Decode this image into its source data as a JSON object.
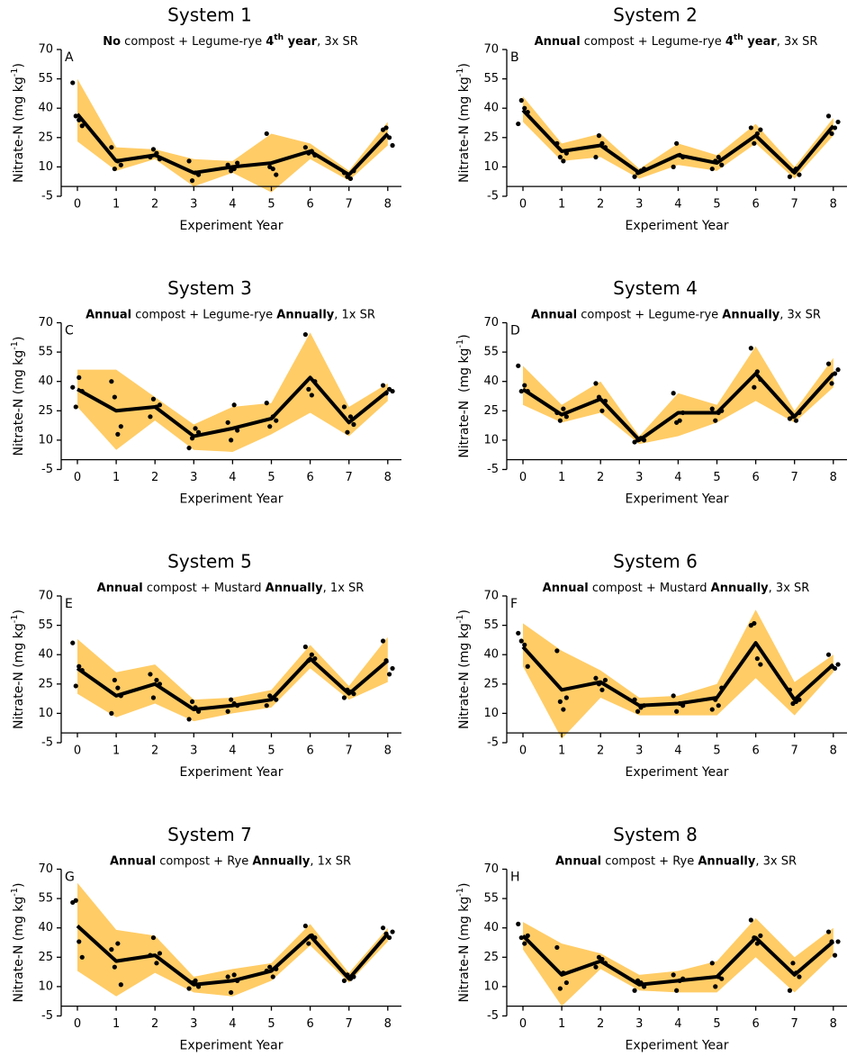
{
  "chart_data": [
    {
      "type": "line",
      "title": "System 1",
      "panel_label": "A",
      "subtitle": [
        {
          "text": "No",
          "bold": true
        },
        {
          "text": " compost + Legume-rye "
        },
        {
          "text": "4",
          "bold": true
        },
        {
          "text": "th",
          "bold": true,
          "sup": true
        },
        {
          "text": " year",
          "bold": true
        },
        {
          "text": ", 3x SR"
        }
      ],
      "xlabel": "Experiment Year",
      "ylabel": [
        {
          "text": "Nitrate-N (mg kg"
        },
        {
          "text": "-1",
          "sup": true
        },
        {
          "text": ")"
        }
      ],
      "categories": [
        "0",
        "1",
        "2",
        "3",
        "4",
        "5",
        "6",
        "7",
        "8"
      ],
      "ylim": [
        -5,
        70
      ],
      "yticks": [
        -5,
        10,
        25,
        40,
        55,
        70
      ],
      "color": "#000000",
      "band_color": "#ffcc66",
      "values": [
        37,
        13,
        16,
        7,
        10,
        12,
        18,
        6,
        27
      ],
      "band": {
        "lower": [
          23,
          8,
          14,
          0,
          7,
          -3,
          14,
          3,
          21
        ],
        "upper": [
          55,
          20,
          19,
          14,
          13,
          27,
          22,
          8,
          33
        ]
      },
      "points": [
        [
          53,
          36,
          34,
          31
        ],
        [
          20,
          9,
          13,
          11
        ],
        [
          15,
          19,
          17,
          14
        ],
        [
          13,
          3,
          7,
          6
        ],
        [
          11,
          8,
          9,
          12
        ],
        [
          27,
          10,
          9,
          6
        ],
        [
          20,
          17,
          18,
          16
        ],
        [
          7,
          5,
          4,
          8
        ],
        [
          29,
          30,
          25,
          21
        ]
      ]
    },
    {
      "type": "line",
      "title": "System 2",
      "panel_label": "B",
      "subtitle": [
        {
          "text": "Annual",
          "bold": true
        },
        {
          "text": " compost + Legume-rye "
        },
        {
          "text": "4",
          "bold": true
        },
        {
          "text": "th",
          "bold": true,
          "sup": true
        },
        {
          "text": " year",
          "bold": true
        },
        {
          "text": ", 3x SR"
        }
      ],
      "xlabel": "Experiment Year",
      "ylabel": [
        {
          "text": "Nitrate-N (mg kg"
        },
        {
          "text": "-1",
          "sup": true
        },
        {
          "text": ")"
        }
      ],
      "categories": [
        "0",
        "1",
        "2",
        "3",
        "4",
        "5",
        "6",
        "7",
        "8"
      ],
      "ylim": [
        -5,
        70
      ],
      "yticks": [
        -5,
        10,
        25,
        40,
        55,
        70
      ],
      "color": "#000000",
      "band_color": "#ffcc66",
      "values": [
        39,
        18,
        21,
        7,
        16,
        12,
        26,
        7,
        31
      ],
      "band": {
        "lower": [
          33,
          13,
          15,
          4,
          11,
          8,
          22,
          4,
          26
        ],
        "upper": [
          46,
          22,
          27,
          9,
          22,
          16,
          32,
          10,
          35
        ]
      },
      "points": [
        [
          32,
          44,
          40,
          38
        ],
        [
          22,
          15,
          13,
          17
        ],
        [
          15,
          26,
          22,
          20
        ],
        [
          5,
          7,
          8,
          9
        ],
        [
          10,
          22,
          16,
          15
        ],
        [
          9,
          13,
          15,
          11
        ],
        [
          30,
          22,
          27,
          29
        ],
        [
          5,
          8,
          9,
          6
        ],
        [
          36,
          27,
          30,
          33
        ]
      ]
    },
    {
      "type": "line",
      "title": "System 3",
      "panel_label": "C",
      "subtitle": [
        {
          "text": "Annual",
          "bold": true
        },
        {
          "text": " compost + Legume-rye "
        },
        {
          "text": "Annually",
          "bold": true
        },
        {
          "text": ", 1x SR"
        }
      ],
      "xlabel": "Experiment Year",
      "ylabel": [
        {
          "text": "Nitrate-N (mg kg"
        },
        {
          "text": "-1",
          "sup": true
        },
        {
          "text": ")"
        }
      ],
      "categories": [
        "0",
        "1",
        "2",
        "3",
        "4",
        "5",
        "6",
        "7",
        "8"
      ],
      "ylim": [
        -5,
        70
      ],
      "yticks": [
        -5,
        10,
        25,
        40,
        55,
        70
      ],
      "color": "#000000",
      "band_color": "#ffcc66",
      "values": [
        36,
        25,
        27,
        12,
        16,
        21,
        42,
        19,
        35
      ],
      "band": {
        "lower": [
          27,
          5,
          20,
          5,
          4,
          13,
          24,
          12,
          30
        ],
        "upper": [
          46,
          46,
          32,
          18,
          27,
          29,
          65,
          27,
          39
        ]
      },
      "points": [
        [
          37,
          27,
          42,
          35
        ],
        [
          40,
          32,
          13,
          17
        ],
        [
          22,
          31,
          27,
          28
        ],
        [
          6,
          11,
          16,
          14
        ],
        [
          19,
          10,
          28,
          15
        ],
        [
          29,
          17,
          22,
          20
        ],
        [
          64,
          36,
          33,
          40
        ],
        [
          27,
          14,
          22,
          18
        ],
        [
          38,
          34,
          36,
          35
        ]
      ]
    },
    {
      "type": "line",
      "title": "System 4",
      "panel_label": "D",
      "subtitle": [
        {
          "text": "Annual",
          "bold": true
        },
        {
          "text": " compost + Legume-rye "
        },
        {
          "text": "Annually",
          "bold": true
        },
        {
          "text": ", 3x SR"
        }
      ],
      "xlabel": "Experiment Year",
      "ylabel": [
        {
          "text": "Nitrate-N  (mg kg"
        },
        {
          "text": "-1",
          "sup": true
        },
        {
          "text": ")"
        }
      ],
      "categories": [
        "0",
        "1",
        "2",
        "3",
        "4",
        "5",
        "6",
        "7",
        "8"
      ],
      "ylim": [
        -5,
        70
      ],
      "yticks": [
        -5,
        10,
        25,
        40,
        55,
        70
      ],
      "color": "#000000",
      "band_color": "#ffcc66",
      "values": [
        36,
        23,
        31,
        10,
        24,
        24,
        44,
        22,
        44
      ],
      "band": {
        "lower": [
          28,
          19,
          24,
          8,
          12,
          19,
          30,
          19,
          37
        ],
        "upper": [
          48,
          28,
          40,
          12,
          34,
          28,
          58,
          25,
          52
        ]
      },
      "points": [
        [
          48,
          35,
          38,
          35
        ],
        [
          24,
          20,
          26,
          22
        ],
        [
          39,
          32,
          25,
          30
        ],
        [
          9,
          10,
          11,
          10
        ],
        [
          34,
          19,
          20,
          24
        ],
        [
          26,
          20,
          24,
          25
        ],
        [
          57,
          37,
          45,
          41
        ],
        [
          21,
          22,
          20,
          24
        ],
        [
          49,
          39,
          44,
          46
        ]
      ]
    },
    {
      "type": "line",
      "title": "System 5",
      "panel_label": "E",
      "subtitle": [
        {
          "text": "Annual",
          "bold": true
        },
        {
          "text": " compost + Mustard "
        },
        {
          "text": "Annually",
          "bold": true
        },
        {
          "text": ", 1x SR"
        }
      ],
      "xlabel": "Experiment Year",
      "ylabel": [
        {
          "text": "Nitrate-N (mg kg"
        },
        {
          "text": "-1",
          "sup": true
        },
        {
          "text": ")"
        }
      ],
      "categories": [
        "0",
        "1",
        "2",
        "3",
        "4",
        "5",
        "6",
        "7",
        "8"
      ],
      "ylim": [
        -5,
        70
      ],
      "yticks": [
        -5,
        10,
        25,
        40,
        55,
        70
      ],
      "color": "#000000",
      "band_color": "#ffcc66",
      "values": [
        33,
        19,
        25,
        12,
        14,
        17,
        38,
        20,
        37
      ],
      "band": {
        "lower": [
          20,
          8,
          15,
          6,
          10,
          13,
          33,
          17,
          26
        ],
        "upper": [
          48,
          31,
          35,
          17,
          18,
          22,
          45,
          24,
          49
        ]
      },
      "points": [
        [
          46,
          24,
          34,
          32
        ],
        [
          10,
          27,
          23,
          19
        ],
        [
          30,
          18,
          27,
          25
        ],
        [
          7,
          16,
          13,
          11
        ],
        [
          11,
          17,
          15,
          14
        ],
        [
          14,
          19,
          18,
          17
        ],
        [
          44,
          37,
          40,
          38
        ],
        [
          18,
          22,
          21,
          20
        ],
        [
          47,
          37,
          30,
          33
        ]
      ]
    },
    {
      "type": "line",
      "title": "System 6",
      "panel_label": "F",
      "subtitle": [
        {
          "text": "Annual",
          "bold": true
        },
        {
          "text": " compost + Mustard "
        },
        {
          "text": "Annually",
          "bold": true
        },
        {
          "text": ", 3x SR"
        }
      ],
      "xlabel": "Experiment Year",
      "ylabel": [
        {
          "text": "Nitrate-N (mg kg"
        },
        {
          "text": "-1",
          "sup": true
        },
        {
          "text": ")"
        }
      ],
      "categories": [
        "0",
        "1",
        "2",
        "3",
        "4",
        "5",
        "6",
        "7",
        "8"
      ],
      "ylim": [
        -5,
        70
      ],
      "yticks": [
        -5,
        10,
        25,
        40,
        55,
        70
      ],
      "color": "#000000",
      "band_color": "#ffcc66",
      "values": [
        44,
        22,
        26,
        14,
        15,
        18,
        46,
        17,
        35
      ],
      "band": {
        "lower": [
          34,
          -3,
          18,
          9,
          9,
          9,
          28,
          9,
          31
        ],
        "upper": [
          56,
          42,
          32,
          18,
          19,
          25,
          63,
          26,
          40
        ]
      },
      "points": [
        [
          51,
          47,
          45,
          34
        ],
        [
          42,
          16,
          12,
          18
        ],
        [
          28,
          25,
          22,
          27
        ],
        [
          17,
          11,
          13,
          14
        ],
        [
          19,
          11,
          15,
          14
        ],
        [
          12,
          17,
          14,
          23
        ],
        [
          55,
          56,
          38,
          35
        ],
        [
          22,
          15,
          16,
          17
        ],
        [
          40,
          34,
          33,
          35
        ]
      ]
    },
    {
      "type": "line",
      "title": "System 7",
      "panel_label": "G",
      "subtitle": [
        {
          "text": "Annual",
          "bold": true
        },
        {
          "text": " compost + Rye "
        },
        {
          "text": "Annually",
          "bold": true
        },
        {
          "text": ", 1x SR"
        }
      ],
      "xlabel": "Experiment Year",
      "ylabel": [
        {
          "text": "Nitrate-N (mg kg"
        },
        {
          "text": "-1",
          "sup": true
        },
        {
          "text": ")"
        }
      ],
      "categories": [
        "0",
        "1",
        "2",
        "3",
        "4",
        "5",
        "6",
        "7",
        "8"
      ],
      "ylim": [
        -5,
        70
      ],
      "yticks": [
        -5,
        10,
        25,
        40,
        55,
        70
      ],
      "color": "#000000",
      "band_color": "#ffcc66",
      "values": [
        41,
        23,
        26,
        11,
        13,
        18,
        36,
        14,
        37
      ],
      "band": {
        "lower": [
          18,
          5,
          17,
          7,
          5,
          13,
          31,
          12,
          33
        ],
        "upper": [
          63,
          39,
          36,
          15,
          19,
          22,
          42,
          17,
          40
        ]
      },
      "points": [
        [
          53,
          54,
          33,
          25
        ],
        [
          29,
          20,
          32,
          11
        ],
        [
          26,
          35,
          22,
          27
        ],
        [
          9,
          12,
          13,
          10
        ],
        [
          15,
          7,
          16,
          13
        ],
        [
          18,
          20,
          15,
          19
        ],
        [
          41,
          32,
          36,
          35
        ],
        [
          13,
          16,
          14,
          15
        ],
        [
          40,
          37,
          35,
          38
        ]
      ]
    },
    {
      "type": "line",
      "title": "System 8",
      "panel_label": "H",
      "subtitle": [
        {
          "text": "Annual",
          "bold": true
        },
        {
          "text": " compost + Rye "
        },
        {
          "text": "Annually",
          "bold": true
        },
        {
          "text": ", 3x SR"
        }
      ],
      "xlabel": "Experiment Year",
      "ylabel": [
        {
          "text": "Nitrate-N (mg kg"
        },
        {
          "text": "-1",
          "sup": true
        },
        {
          "text": ")"
        }
      ],
      "categories": [
        "0",
        "1",
        "2",
        "3",
        "4",
        "5",
        "6",
        "7",
        "8"
      ],
      "ylim": [
        -5,
        70
      ],
      "yticks": [
        -5,
        10,
        25,
        40,
        55,
        70
      ],
      "color": "#000000",
      "band_color": "#ffcc66",
      "values": [
        36,
        16,
        23,
        11,
        13,
        15,
        35,
        16,
        33
      ],
      "band": {
        "lower": [
          29,
          0,
          19,
          8,
          7,
          7,
          25,
          7,
          26
        ],
        "upper": [
          43,
          32,
          27,
          16,
          18,
          23,
          45,
          25,
          40
        ]
      },
      "points": [
        [
          42,
          35,
          32,
          36
        ],
        [
          30,
          9,
          17,
          12
        ],
        [
          20,
          25,
          24,
          22
        ],
        [
          8,
          13,
          12,
          10
        ],
        [
          16,
          8,
          13,
          14
        ],
        [
          22,
          10,
          15,
          14
        ],
        [
          44,
          35,
          32,
          36
        ],
        [
          8,
          22,
          17,
          15
        ],
        [
          38,
          33,
          26,
          33
        ]
      ]
    }
  ]
}
